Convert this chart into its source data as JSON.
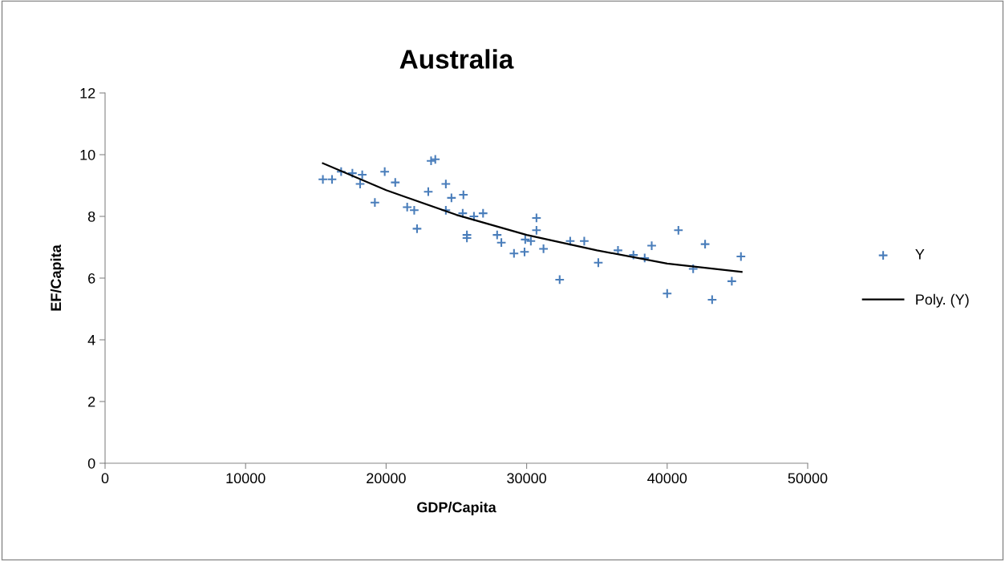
{
  "chart_data": {
    "type": "scatter",
    "title": "Australia",
    "xlabel": "GDP/Capita",
    "ylabel": "EF/Capita",
    "xlim": [
      0,
      50000
    ],
    "xticks": [
      0,
      10000,
      20000,
      30000,
      40000,
      50000
    ],
    "ylim": [
      0,
      12
    ],
    "yticks": [
      0,
      2,
      4,
      6,
      8,
      10,
      12
    ],
    "grid": false,
    "legend": "right",
    "series": [
      {
        "name": "Y",
        "marker": "cross",
        "color": "#4a7ebb",
        "x": [
          15500,
          16150,
          16800,
          17600,
          18300,
          18150,
          19200,
          19900,
          20650,
          21500,
          22000,
          22200,
          23000,
          23200,
          23500,
          24250,
          24250,
          24650,
          25500,
          25450,
          25750,
          25750,
          26250,
          26900,
          27900,
          28200,
          29100,
          29900,
          29850,
          30300,
          30700,
          30700,
          31200,
          32350,
          33100,
          34100,
          35100,
          36500,
          37600,
          38400,
          38900,
          40000,
          40800,
          41850,
          42700,
          43200,
          44600,
          45250
        ],
        "values": [
          9.2,
          9.2,
          9.45,
          9.4,
          9.35,
          9.05,
          8.45,
          9.45,
          9.1,
          8.3,
          8.2,
          7.6,
          8.8,
          9.8,
          9.85,
          9.05,
          8.2,
          8.6,
          8.7,
          8.1,
          7.4,
          7.3,
          8.0,
          8.1,
          7.4,
          7.15,
          6.8,
          7.25,
          6.85,
          7.2,
          7.95,
          7.55,
          6.95,
          5.95,
          7.2,
          7.2,
          6.5,
          6.9,
          6.75,
          6.65,
          7.05,
          5.5,
          7.55,
          6.3,
          7.1,
          5.3,
          5.9,
          6.7
        ]
      },
      {
        "name": "Poly. (Y)",
        "type": "line",
        "color": "#000000",
        "x": [
          15500,
          20000,
          25000,
          30000,
          35000,
          40000,
          45300
        ],
        "values": [
          9.72,
          8.85,
          8.05,
          7.4,
          6.9,
          6.47,
          6.2
        ]
      }
    ]
  }
}
